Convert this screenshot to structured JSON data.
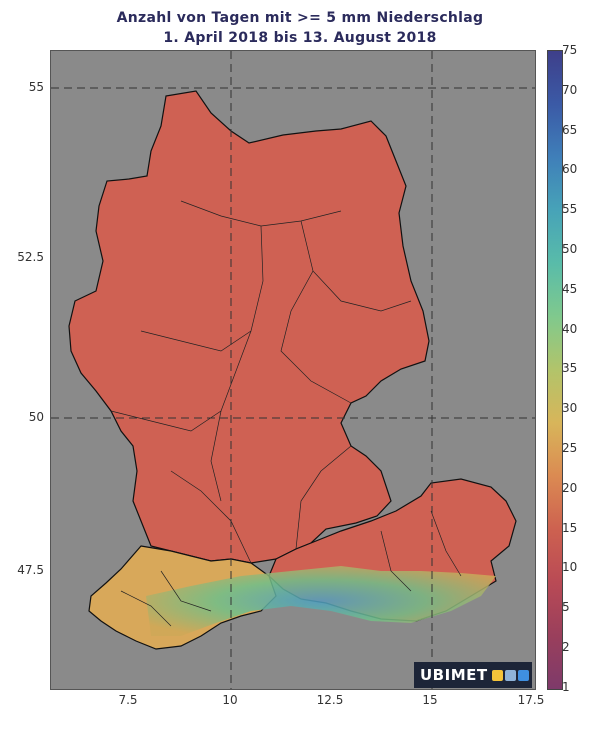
{
  "title": {
    "line1": "Anzahl von Tagen mit >= 5 mm Niederschlag",
    "line2": "1. April 2018 bis 13. August 2018"
  },
  "axes": {
    "y_ticks": [
      "55",
      "52.5",
      "50",
      "47.5"
    ],
    "x_ticks": [
      "7.5",
      "10",
      "12.5",
      "15",
      "17.5"
    ],
    "grid": "dashed"
  },
  "colorbar": {
    "ticks": [
      "75",
      "70",
      "65",
      "60",
      "55",
      "50",
      "45",
      "40",
      "35",
      "30",
      "25",
      "20",
      "15",
      "10",
      "5",
      "2",
      "1"
    ],
    "colors": [
      "#3e3f8a",
      "#3b5aa6",
      "#3f7fb9",
      "#47a3b8",
      "#59bca9",
      "#80c98d",
      "#b2c46a",
      "#d8b55a",
      "#db8a52",
      "#cd6150",
      "#b94a55",
      "#9a3f5c",
      "#7e3a6a"
    ]
  },
  "map": {
    "background_color": "#8a8a8a",
    "dominant_color": "#cf6153",
    "alpine_color": "#6fbf8a"
  },
  "logo": {
    "text": "UBIMET",
    "icon_colors": [
      "#f5c43a",
      "#8fb3d9",
      "#3f8fe0"
    ]
  }
}
